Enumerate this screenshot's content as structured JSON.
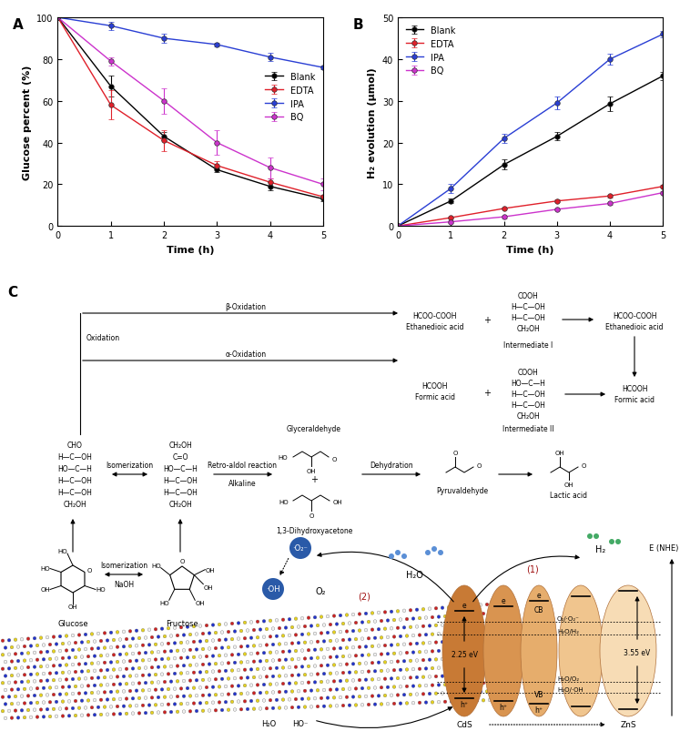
{
  "chart_data": [
    {
      "type": "line",
      "title": "A",
      "xlabel": "Time (h)",
      "ylabel": "Glucose percent (%)",
      "x": [
        0,
        1,
        2,
        3,
        4,
        5
      ],
      "xlim": [
        0,
        5
      ],
      "xticks": [
        0,
        1,
        2,
        3,
        4,
        5
      ],
      "ylim": [
        0,
        100
      ],
      "yticks": [
        0,
        20,
        40,
        60,
        80,
        100
      ],
      "legend": "center right",
      "marker": "circle",
      "line_style": "solid",
      "series": [
        {
          "name": "Blank",
          "color": "#000000",
          "values": [
            100,
            67,
            43,
            27,
            19,
            13
          ],
          "errors": [
            0,
            5,
            2,
            1,
            2,
            1
          ]
        },
        {
          "name": "EDTA",
          "color": "#e0202a",
          "values": [
            100,
            58,
            41,
            29,
            21,
            14
          ],
          "errors": [
            0,
            7,
            5,
            2,
            2,
            1
          ]
        },
        {
          "name": "IPA",
          "color": "#2a3fd4",
          "values": [
            100,
            96,
            90,
            87,
            81,
            76
          ],
          "errors": [
            0,
            2,
            2,
            1,
            2,
            1
          ]
        },
        {
          "name": "BQ",
          "color": "#cc33cc",
          "values": [
            100,
            79,
            60,
            40,
            28,
            20
          ],
          "errors": [
            0,
            2,
            6,
            6,
            5,
            3
          ]
        }
      ]
    },
    {
      "type": "line",
      "title": "B",
      "xlabel": "Time (h)",
      "ylabel": "H₂ evolution (μmol)",
      "x": [
        0,
        1,
        2,
        3,
        4,
        5
      ],
      "xlim": [
        0,
        5
      ],
      "xticks": [
        0,
        1,
        2,
        3,
        4,
        5
      ],
      "ylim": [
        0,
        50
      ],
      "yticks": [
        0,
        10,
        20,
        30,
        40,
        50
      ],
      "legend": "upper left",
      "marker": "circle",
      "line_style": "solid",
      "series": [
        {
          "name": "Blank",
          "color": "#000000",
          "values": [
            0,
            6,
            14.7,
            21.5,
            29.3,
            36
          ],
          "errors": [
            0,
            0.5,
            1.2,
            1,
            1.8,
            1
          ]
        },
        {
          "name": "EDTA",
          "color": "#e0202a",
          "values": [
            0,
            2,
            4.2,
            6,
            7.2,
            9.5
          ],
          "errors": [
            0,
            0.3,
            0.3,
            0.3,
            0.3,
            0.3
          ]
        },
        {
          "name": "IPA",
          "color": "#2a3fd4",
          "values": [
            0,
            9,
            21,
            29.5,
            40,
            46
          ],
          "errors": [
            0,
            1,
            1,
            1.5,
            1.3,
            0.8
          ]
        },
        {
          "name": "BQ",
          "color": "#cc33cc",
          "values": [
            0,
            1,
            2.2,
            4,
            5.4,
            8
          ],
          "errors": [
            0,
            0.3,
            0.3,
            0.3,
            0.3,
            0.3
          ]
        }
      ]
    }
  ],
  "diagram": {
    "title": "C",
    "texts": {
      "oxidation": "Oxidation",
      "beta": "β-Oxidation",
      "alpha": "α-Oxidation",
      "ox_top_formula": "HCOO-COOH",
      "ox_top_name": "Ethanedioic acid",
      "plus_top": "+",
      "int1_name": "Intermediate I",
      "ox_right_formula": "HCOO-COOH",
      "ox_right_name": "Ethanedioic acid",
      "fa_mid_formula": "HCOOH",
      "fa_mid_name": "Formic acid",
      "plus_mid": "+",
      "int2_name": "Intermediate II",
      "fa_right_formula": "HCOOH",
      "fa_right_name": "Formic acid",
      "iso_top": "Isomerization",
      "retro": "Retro-aldol reaction",
      "alkaline": "Alkaline",
      "glyceraldehyde": "Glyceraldehyde",
      "plus_c3": "+",
      "dha": "1,3-Dihydroxyacetone",
      "dehydration": "Dehydration",
      "pyruvaldehyde": "Pyruvaldehyde",
      "lactic": "Lactic acid",
      "glucose": "Glucose",
      "fructose": "Fructose",
      "iso_bottom": "Isomerization",
      "naoh": "NaOH",
      "superoxide": "·O₂⁻",
      "hydroxyl": "·OH",
      "o2": "O₂",
      "h2o_top": "H₂O",
      "h2": "H₂",
      "step1": "(1)",
      "step2": "(2)",
      "h2o_bottom": "H₂O",
      "oh_bottom": "HO⁻",
      "gap_cds": "2.25 eV",
      "gap_zns": "3.55 eV",
      "cb": "CB",
      "vb": "VB",
      "cds": "CdS",
      "zns": "ZnS",
      "energy": "E (NHE)",
      "pot_o2": "O₂/·O₂⁻",
      "pot_h2": "H₂O/H₂",
      "pot_o2h2o": "H₂O/O₂",
      "pot_oh": "H₂O/·OH",
      "electron": "e",
      "hole": "h⁺"
    },
    "fischer": {
      "glucose": [
        "CHO",
        "H—C—OH",
        "HO—C—H",
        "H—C—OH",
        "H—C—OH",
        "CH₂OH"
      ],
      "fructose": [
        "CH₂OH",
        "C=O",
        "HO—C—H",
        "H—C—OH",
        "H—C—OH",
        "CH₂OH"
      ],
      "intermediate_1": [
        "COOH",
        "H—C—OH",
        "H—C—OH",
        "CH₂OH"
      ],
      "intermediate_2": [
        "COOH",
        "HO—C—H",
        "H—C—OH",
        "H—C—OH",
        "CH₂OH"
      ]
    },
    "atoms": {
      "ring_glucose": [
        "O",
        "HO",
        "OH",
        "OH",
        "HO",
        "HO"
      ],
      "ring_fructose": [
        "O",
        "OH",
        "OH",
        "OH",
        "HO",
        "HO"
      ],
      "glyceraldehyde": [
        "HO",
        "OH",
        "O"
      ],
      "dha": [
        "HO",
        "O",
        "OH"
      ],
      "pyruvaldehyde": [
        "O",
        "O"
      ],
      "lactic": [
        "OH",
        "O",
        "OH"
      ]
    }
  }
}
